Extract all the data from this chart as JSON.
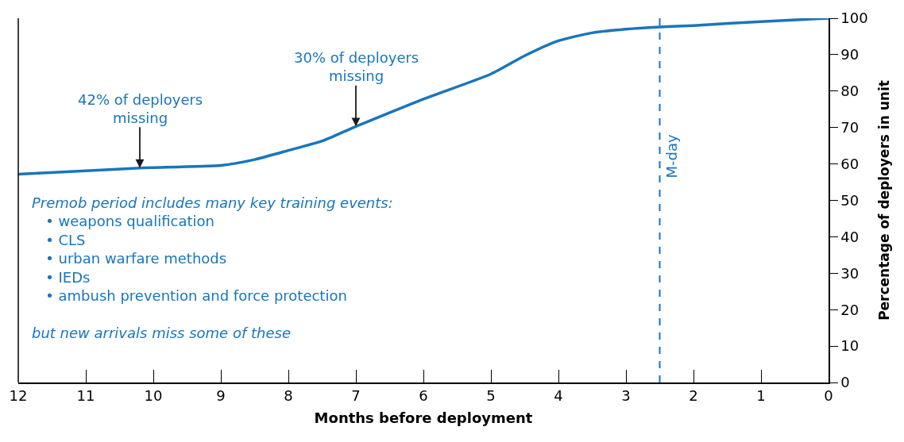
{
  "chart_data": {
    "type": "line",
    "xlabel": "Months before deployment",
    "ylabel": "Percentage of deployers in unit",
    "x": [
      12,
      11,
      10.2,
      9,
      8.5,
      8,
      7.5,
      7,
      6,
      5,
      4.5,
      4,
      3.5,
      3,
      2.5,
      2,
      1,
      0
    ],
    "series": [
      {
        "color": "#1a75bc",
        "values": [
          57.2,
          58.1,
          58.9,
          59.6,
          61.2,
          63.7,
          66.3,
          70.3,
          77.8,
          84.7,
          89.7,
          93.8,
          96,
          97,
          97.6,
          98,
          99.1,
          100
        ]
      }
    ],
    "xlim": [
      12,
      0
    ],
    "xticks": [
      12,
      11,
      10,
      9,
      8,
      7,
      6,
      5,
      4,
      3,
      2,
      1,
      0
    ],
    "ylim": [
      0,
      100
    ],
    "yticks": [
      0,
      10,
      20,
      30,
      40,
      50,
      60,
      70,
      80,
      90,
      100
    ],
    "ref_lines": [
      {
        "axis": "x",
        "value": 2.5,
        "label": "M-day",
        "color": "#1a75bc",
        "line_style": "dashed"
      }
    ],
    "annotations": [
      {
        "text": "42% of deployers\nmissing",
        "x": 10.2,
        "y": 58.9
      },
      {
        "text": "30% of deployers\nmissing",
        "x": 7,
        "y": 70.3
      },
      "Premob period includes many key training events:\n• weapons qualification\n• CLS\n• urban warfare methods\n• IEDs\n• ambush prevention and force protection\n\nbut new arrivals miss some of these"
    ],
    "marker": "none",
    "line_style": "solid"
  }
}
